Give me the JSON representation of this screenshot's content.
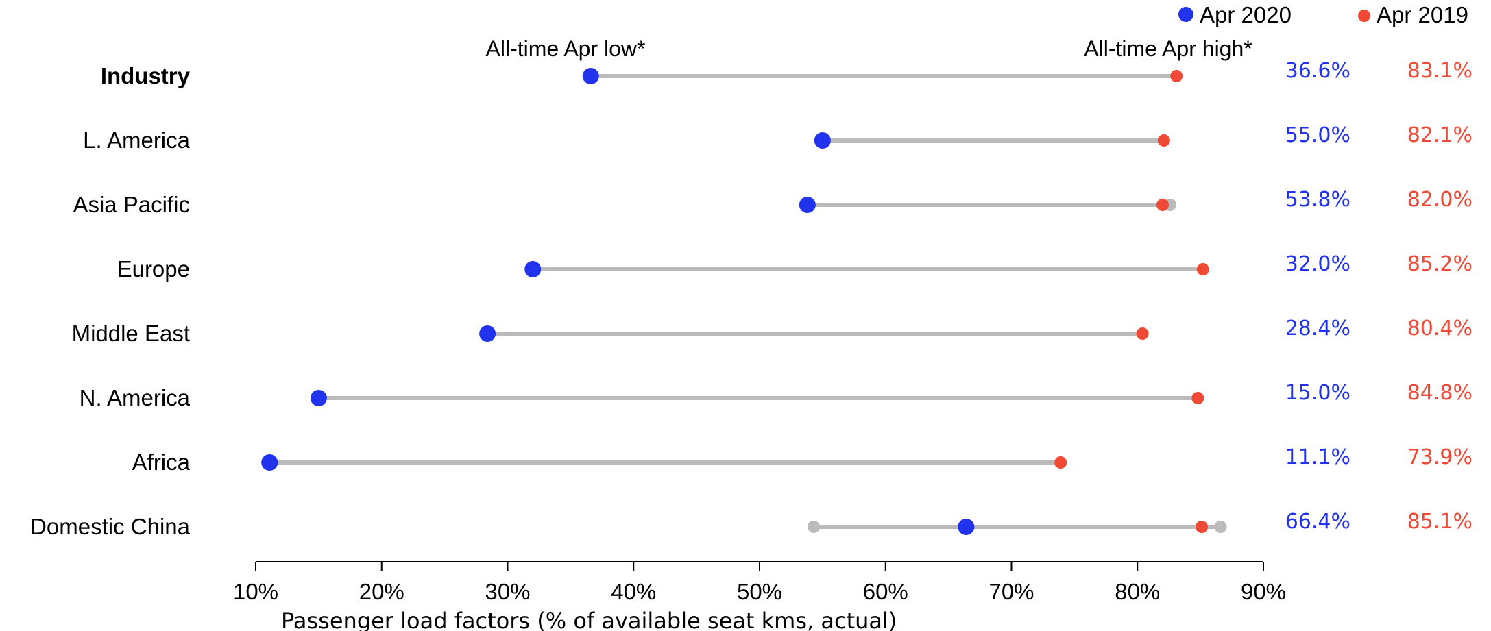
{
  "chart_data": {
    "type": "dumbbell",
    "xlabel": "Passenger  load factors (% of available seat  kms, actual)",
    "xlim": [
      10,
      90
    ],
    "xticks": [
      10,
      20,
      30,
      40,
      50,
      60,
      70,
      80,
      90
    ],
    "xtick_labels": [
      "10%",
      "20%",
      "30%",
      "40%",
      "50%",
      "60%",
      "70%",
      "80%",
      "90%"
    ],
    "categories": [
      "Industry",
      "L. America",
      "Asia Pacific",
      "Europe",
      "Middle East",
      "N. America",
      "Africa",
      "Domestic China"
    ],
    "bold_category": "Industry",
    "series": [
      {
        "name": "Apr 2020",
        "color": "#2233ee",
        "values": [
          36.6,
          55.0,
          53.8,
          32.0,
          28.4,
          15.0,
          11.1,
          66.4
        ],
        "labels": [
          "36.6%",
          "55.0%",
          "53.8%",
          "32.0%",
          "28.4%",
          "15.0%",
          "11.1%",
          "66.4%"
        ]
      },
      {
        "name": "Apr 2019",
        "color": "#f04a36",
        "values": [
          83.1,
          82.1,
          82.0,
          85.2,
          80.4,
          84.8,
          73.9,
          85.1
        ],
        "labels": [
          "83.1%",
          "82.1%",
          "82.0%",
          "85.2%",
          "80.4%",
          "84.8%",
          "73.9%",
          "85.1%"
        ]
      }
    ],
    "range_points": [
      {
        "category": "Asia Pacific",
        "low": null,
        "high": 82.6
      },
      {
        "category": "Domestic China",
        "low": 54.3,
        "high": 86.6
      }
    ],
    "range_color": "#bbbbbb",
    "annotations": {
      "low": "All-time Apr low*",
      "high": "All-time Apr high*"
    },
    "legend_position": "top-right"
  }
}
